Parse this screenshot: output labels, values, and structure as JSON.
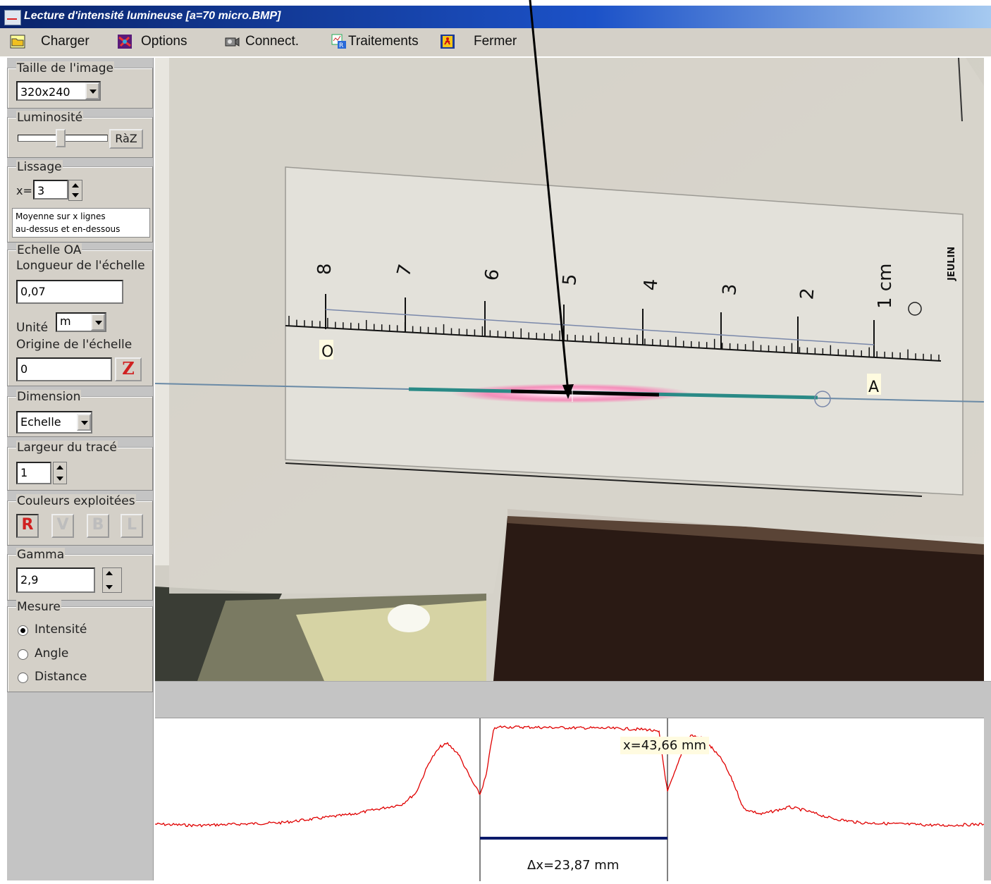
{
  "window": {
    "title": "Lecture d'intensité lumineuse [a=70 micro.BMP]"
  },
  "menu": {
    "charger": "Charger",
    "options": "Options",
    "connect": "Connect.",
    "traitements": "Traitements",
    "fermer": "Fermer"
  },
  "sidebar": {
    "taille": {
      "title": "Taille de l'image",
      "value": "320x240"
    },
    "luminosite": {
      "title": "Luminosité",
      "reset": "RàZ",
      "level": 0.5
    },
    "lissage": {
      "title": "Lissage",
      "x_label": "x=",
      "x_value": "3",
      "info_line1": "Moyenne sur x lignes",
      "info_line2": "au-dessus et en-dessous"
    },
    "echelle": {
      "title": "Echelle OA",
      "longueur_label": "Longueur de l'échelle",
      "longueur_value": "0,07",
      "unite_label": "Unité",
      "unite_value": "m",
      "origine_label": "Origine de l'échelle",
      "origine_value": "0",
      "z_button": "Z"
    },
    "dimension": {
      "title": "Dimension",
      "value": "Echelle"
    },
    "largeur": {
      "title": "Largeur du tracé",
      "value": "1"
    },
    "couleurs": {
      "title": "Couleurs exploitées",
      "r": "R",
      "v": "V",
      "b": "B",
      "l": "L"
    },
    "gamma": {
      "title": "Gamma",
      "value": "2,9"
    },
    "mesure": {
      "title": "Mesure",
      "options": [
        "Intensité",
        "Angle",
        "Distance"
      ],
      "selected": "Intensité"
    }
  },
  "photo": {
    "ruler_numbers": [
      "8",
      "7",
      "6",
      "5",
      "4",
      "3",
      "2",
      "1 cm"
    ],
    "brand": "JEULIN",
    "point_o": "O",
    "point_a": "A"
  },
  "graph": {
    "x_readout": "x=43,66 mm",
    "delta_readout": "Δx=23,87 mm"
  },
  "colors": {
    "profile": "#e00000",
    "delta_bar": "#0a1a6a",
    "title_bar": "#0a246a"
  }
}
